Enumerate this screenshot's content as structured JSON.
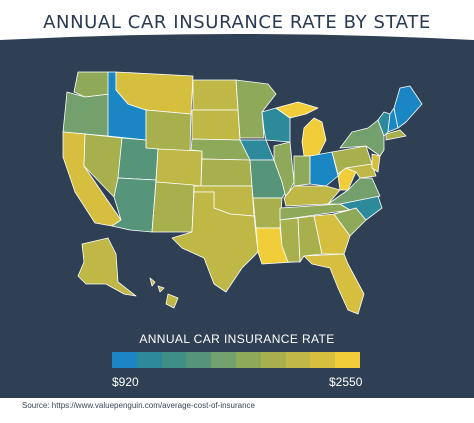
{
  "title": "ANNUAL CAR INSURANCE RATE BY STATE",
  "legend": {
    "title": "ANNUAL CAR INSURANCE RATE",
    "min_label": "$920",
    "max_label": "$2550",
    "scale_colors": [
      "#1b86c4",
      "#2c8a9b",
      "#3f8f86",
      "#56957a",
      "#73a06d",
      "#8fa95a",
      "#a8b04d",
      "#bfb847",
      "#d6bf3f",
      "#f2cd3a"
    ]
  },
  "source": "Source: https://www.valuepenguin.com/average-cost-of-insurance",
  "colors": {
    "background_panel": "#2f4055",
    "title_text": "#2a3a50",
    "state_border": "#ffffff"
  },
  "map_regions": [
    {
      "name": "Washington",
      "color": "#8fa95a"
    },
    {
      "name": "Oregon",
      "color": "#73a06d"
    },
    {
      "name": "California",
      "color": "#d6bf3f"
    },
    {
      "name": "Idaho",
      "color": "#1b86c4"
    },
    {
      "name": "Nevada",
      "color": "#a8b04d"
    },
    {
      "name": "Montana",
      "color": "#d6bf3f"
    },
    {
      "name": "Wyoming",
      "color": "#a8b04d"
    },
    {
      "name": "Utah",
      "color": "#56957a"
    },
    {
      "name": "Arizona",
      "color": "#56957a"
    },
    {
      "name": "Colorado",
      "color": "#bfb847"
    },
    {
      "name": "New Mexico",
      "color": "#a8b04d"
    },
    {
      "name": "North Dakota",
      "color": "#bfb847"
    },
    {
      "name": "South Dakota",
      "color": "#bfb847"
    },
    {
      "name": "Nebraska",
      "color": "#8fa95a"
    },
    {
      "name": "Kansas",
      "color": "#a8b04d"
    },
    {
      "name": "Oklahoma",
      "color": "#bfb847"
    },
    {
      "name": "Texas",
      "color": "#bfb847"
    },
    {
      "name": "Minnesota",
      "color": "#8fa95a"
    },
    {
      "name": "Iowa",
      "color": "#2c8a9b"
    },
    {
      "name": "Missouri",
      "color": "#56957a"
    },
    {
      "name": "Arkansas",
      "color": "#a8b04d"
    },
    {
      "name": "Louisiana",
      "color": "#f2cd3a"
    },
    {
      "name": "Wisconsin",
      "color": "#2c8a9b"
    },
    {
      "name": "Illinois",
      "color": "#8fa95a"
    },
    {
      "name": "Michigan",
      "color": "#f2cd3a"
    },
    {
      "name": "Indiana",
      "color": "#8fa95a"
    },
    {
      "name": "Ohio",
      "color": "#1b86c4"
    },
    {
      "name": "Kentucky",
      "color": "#bfb847"
    },
    {
      "name": "Tennessee",
      "color": "#8fa95a"
    },
    {
      "name": "Mississippi",
      "color": "#a8b04d"
    },
    {
      "name": "Alabama",
      "color": "#a8b04d"
    },
    {
      "name": "Georgia",
      "color": "#d6bf3f"
    },
    {
      "name": "Florida",
      "color": "#d6bf3f"
    },
    {
      "name": "South Carolina",
      "color": "#8fa95a"
    },
    {
      "name": "North Carolina",
      "color": "#2c8a9b"
    },
    {
      "name": "Virginia",
      "color": "#73a06d"
    },
    {
      "name": "West Virginia",
      "color": "#f2cd3a"
    },
    {
      "name": "Pennsylvania",
      "color": "#a8b04d"
    },
    {
      "name": "New York",
      "color": "#73a06d"
    },
    {
      "name": "Vermont",
      "color": "#2c8a9b"
    },
    {
      "name": "New Hampshire",
      "color": "#1b86c4"
    },
    {
      "name": "Maine",
      "color": "#1b86c4"
    },
    {
      "name": "Massachusetts",
      "color": "#a8b04d"
    },
    {
      "name": "New Jersey",
      "color": "#d6bf3f"
    },
    {
      "name": "Maryland",
      "color": "#bfb847"
    },
    {
      "name": "Alaska",
      "color": "#bfb847"
    },
    {
      "name": "Hawaii",
      "color": "#bfb847"
    }
  ]
}
